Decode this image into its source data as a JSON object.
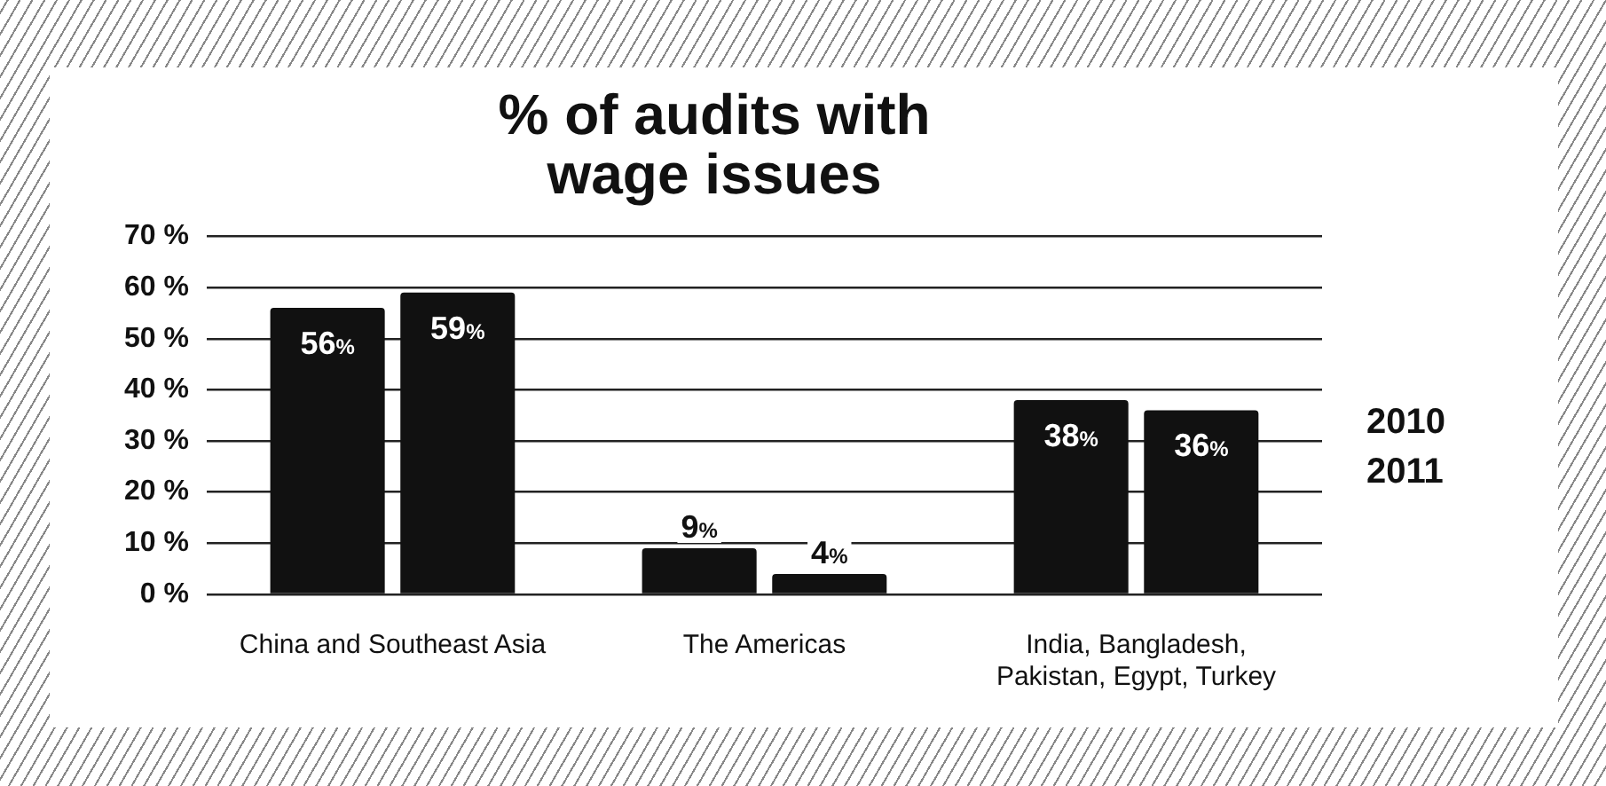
{
  "chart_data": {
    "type": "bar",
    "title": "% of audits with wage issues",
    "categories": [
      "China and Southeast Asia",
      "The Americas",
      "India, Bangladesh, Pakistan, Egypt, Turkey"
    ],
    "series": [
      {
        "name": "2010",
        "color": "#111111",
        "values": [
          56,
          9,
          38
        ],
        "value_labels": [
          "56%",
          "9%",
          "38%"
        ]
      },
      {
        "name": "2011",
        "color": "#111111",
        "values": [
          59,
          4,
          36
        ],
        "value_labels": [
          "59%",
          "4%",
          "36%"
        ]
      }
    ],
    "ylim": [
      0,
      70
    ],
    "yticks": [
      {
        "value": 0,
        "label": "0 %"
      },
      {
        "value": 10,
        "label": "10 %"
      },
      {
        "value": 20,
        "label": "20 %"
      },
      {
        "value": 30,
        "label": "30 %"
      },
      {
        "value": 40,
        "label": "40 %"
      },
      {
        "value": 50,
        "label": "50 %"
      },
      {
        "value": 60,
        "label": "60 %"
      },
      {
        "value": 70,
        "label": "70 %"
      }
    ],
    "grid": "y",
    "legend": "right"
  }
}
